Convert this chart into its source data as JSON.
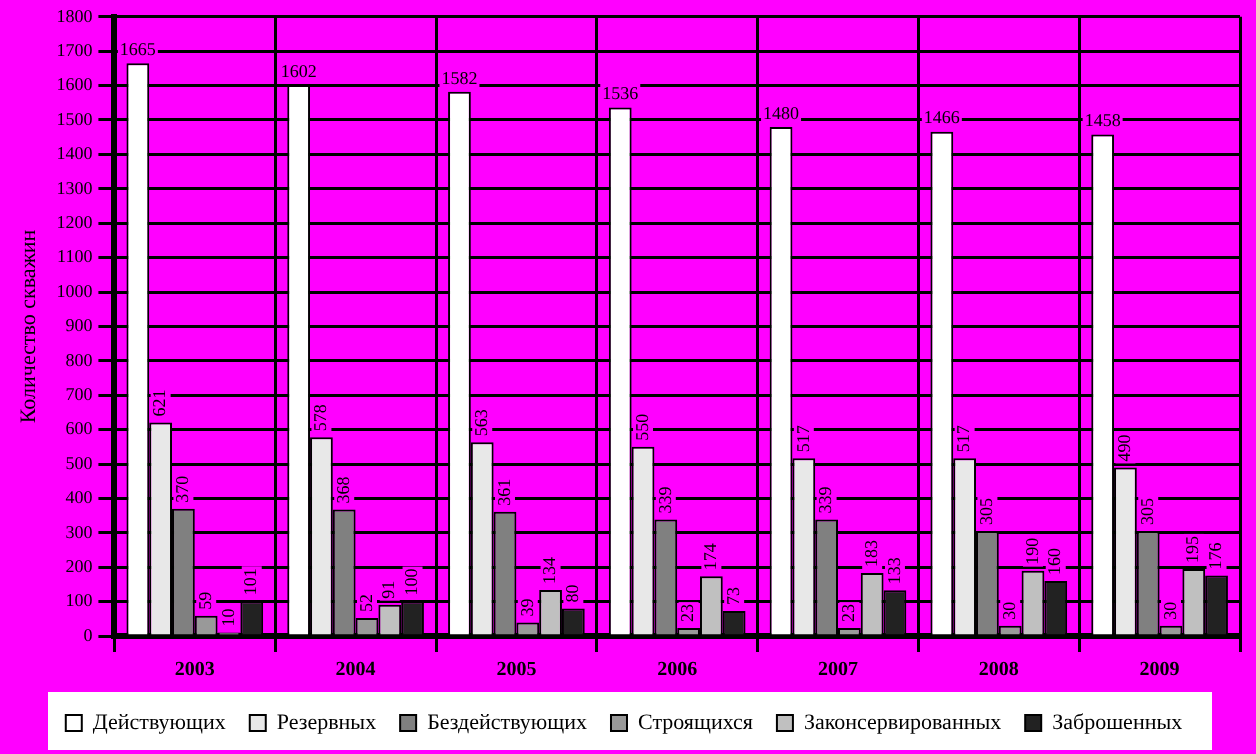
{
  "chart_data": {
    "type": "bar",
    "ylabel": "Количество скважин",
    "categories": [
      "2003",
      "2004",
      "2005",
      "2006",
      "2007",
      "2008",
      "2009"
    ],
    "series": [
      {
        "name": "Действующих",
        "color": "#ffffff",
        "values": [
          1665,
          1602,
          1582,
          1536,
          1480,
          1466,
          1458
        ]
      },
      {
        "name": "Резервных",
        "color": "#e8e8e8",
        "values": [
          621,
          578,
          563,
          550,
          517,
          517,
          490
        ]
      },
      {
        "name": "Бездействующих",
        "color": "#808080",
        "values": [
          370,
          368,
          361,
          339,
          339,
          305,
          305
        ]
      },
      {
        "name": "Строящихся",
        "color": "#999999",
        "values": [
          59,
          52,
          39,
          23,
          23,
          30,
          30
        ]
      },
      {
        "name": "Законсервированных",
        "color": "#c0c0c0",
        "values": [
          10,
          91,
          134,
          174,
          183,
          190,
          195
        ]
      },
      {
        "name": "Заброшенных",
        "color": "#222222",
        "values": [
          101,
          100,
          80,
          73,
          133,
          160,
          176
        ]
      }
    ],
    "ylim": [
      0,
      1800
    ],
    "yticks": [
      0,
      100,
      200,
      300,
      400,
      500,
      600,
      700,
      800,
      900,
      1000,
      1100,
      1200,
      1300,
      1400,
      1500,
      1600,
      1700,
      1800
    ],
    "grid": true,
    "legend": "bottom",
    "data_labels": true
  }
}
